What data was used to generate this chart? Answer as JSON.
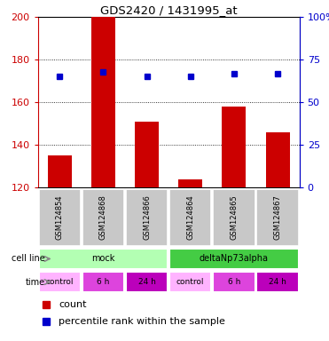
{
  "title": "GDS2420 / 1431995_at",
  "samples": [
    "GSM124854",
    "GSM124868",
    "GSM124866",
    "GSM124864",
    "GSM124865",
    "GSM124867"
  ],
  "counts": [
    135,
    200,
    151,
    124,
    158,
    146
  ],
  "percentile_ranks": [
    65,
    68,
    65,
    65,
    67,
    67
  ],
  "ymin": 120,
  "ymax": 200,
  "yticks": [
    120,
    140,
    160,
    180,
    200
  ],
  "pct_min": 0,
  "pct_max": 100,
  "pct_ticks": [
    0,
    25,
    50,
    75,
    100
  ],
  "pct_tick_labels": [
    "0",
    "25",
    "50",
    "75",
    "100%"
  ],
  "bar_color": "#cc0000",
  "dot_color": "#0000cc",
  "cell_line_mock_color": "#b3ffb3",
  "cell_line_delta_color": "#44cc44",
  "sample_bg_color": "#c8c8c8",
  "cell_line_groups": [
    {
      "label": "mock",
      "start": 0,
      "end": 3
    },
    {
      "label": "deltaNp73alpha",
      "start": 3,
      "end": 6
    }
  ],
  "time_groups": [
    {
      "label": "control",
      "color": "#ffb3ff"
    },
    {
      "label": "6 h",
      "color": "#dd44dd"
    },
    {
      "label": "24 h",
      "color": "#bb00bb"
    },
    {
      "label": "control",
      "color": "#ffb3ff"
    },
    {
      "label": "6 h",
      "color": "#dd44dd"
    },
    {
      "label": "24 h",
      "color": "#bb00bb"
    }
  ],
  "legend_count_color": "#cc0000",
  "legend_pct_color": "#0000cc"
}
